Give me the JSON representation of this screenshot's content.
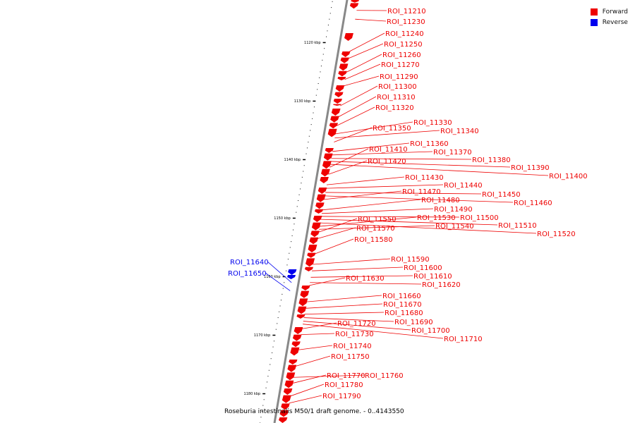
{
  "title": "Roseburia intestinalis M50/1 draft genome. - 0..4143550",
  "legend": [
    {
      "label": "Forward",
      "color": "#ee0000"
    },
    {
      "label": "Reverse",
      "color": "#0000ee"
    }
  ],
  "colors": {
    "forward": "#ee0000",
    "reverse": "#0000ee",
    "axis": "#888888"
  },
  "axis": {
    "start_kbp": 1112,
    "end_kbp": 1185,
    "major_every_kbp": 10
  },
  "tick_labels": [
    {
      "kbp": 1120,
      "label": "1120 kbp"
    },
    {
      "kbp": 1130,
      "label": "1130 kbp"
    },
    {
      "kbp": 1140,
      "label": "1140 kbp"
    },
    {
      "kbp": 1150,
      "label": "1150 kbp"
    },
    {
      "kbp": 1160,
      "label": "1160 kbp"
    },
    {
      "kbp": 1170,
      "label": "1170 kbp"
    },
    {
      "kbp": 1180,
      "label": "1180 kbp"
    }
  ],
  "features": [
    {
      "name": "ROI_11210",
      "strand": "forward",
      "kbp": 1114.5
    },
    {
      "name": "ROI_11230",
      "strand": "forward",
      "kbp": 1116.0
    },
    {
      "name": "ROI_11240",
      "strand": "forward",
      "kbp": 1121.5
    },
    {
      "name": "ROI_11250",
      "strand": "forward",
      "kbp": 1122.7
    },
    {
      "name": "ROI_11260",
      "strand": "forward",
      "kbp": 1125.1
    },
    {
      "name": "ROI_11270",
      "strand": "forward",
      "kbp": 1126.3
    },
    {
      "name": "ROI_11290",
      "strand": "forward",
      "kbp": 1127.4
    },
    {
      "name": "ROI_11300",
      "strand": "forward",
      "kbp": 1130.8
    },
    {
      "name": "ROI_11310",
      "strand": "forward",
      "kbp": 1132.7
    },
    {
      "name": "ROI_11320",
      "strand": "forward",
      "kbp": 1134.2
    },
    {
      "name": "ROI_11330",
      "strand": "forward",
      "kbp": 1135.6
    },
    {
      "name": "ROI_11340",
      "strand": "forward",
      "kbp": 1136.3
    },
    {
      "name": "ROI_11350",
      "strand": "forward",
      "kbp": 1137.0
    },
    {
      "name": "ROI_11360",
      "strand": "forward",
      "kbp": 1138.6
    },
    {
      "name": "ROI_11370",
      "strand": "forward",
      "kbp": 1139.2
    },
    {
      "name": "ROI_11380",
      "strand": "forward",
      "kbp": 1139.8
    },
    {
      "name": "ROI_11390",
      "strand": "forward",
      "kbp": 1140.3
    },
    {
      "name": "ROI_11400",
      "strand": "forward",
      "kbp": 1140.8
    },
    {
      "name": "ROI_11410",
      "strand": "forward",
      "kbp": 1141.3
    },
    {
      "name": "ROI_11420",
      "strand": "forward",
      "kbp": 1142.5
    },
    {
      "name": "ROI_11430",
      "strand": "forward",
      "kbp": 1144.3
    },
    {
      "name": "ROI_11440",
      "strand": "forward",
      "kbp": 1144.9
    },
    {
      "name": "ROI_11450",
      "strand": "forward",
      "kbp": 1145.6
    },
    {
      "name": "ROI_11460",
      "strand": "forward",
      "kbp": 1146.2
    },
    {
      "name": "ROI_11470",
      "strand": "forward",
      "kbp": 1146.8
    },
    {
      "name": "ROI_11480",
      "strand": "forward",
      "kbp": 1148.6
    },
    {
      "name": "ROI_11490",
      "strand": "forward",
      "kbp": 1149.2
    },
    {
      "name": "ROI_11500",
      "strand": "forward",
      "kbp": 1149.7
    },
    {
      "name": "ROI_11510",
      "strand": "forward",
      "kbp": 1150.2
    },
    {
      "name": "ROI_11520",
      "strand": "forward",
      "kbp": 1150.8
    },
    {
      "name": "ROI_11530",
      "strand": "forward",
      "kbp": 1151.4
    },
    {
      "name": "ROI_11540",
      "strand": "forward",
      "kbp": 1151.9
    },
    {
      "name": "ROI_11550",
      "strand": "forward",
      "kbp": 1152.4
    },
    {
      "name": "ROI_11570",
      "strand": "forward",
      "kbp": 1153.5
    },
    {
      "name": "ROI_11580",
      "strand": "forward",
      "kbp": 1156.1
    },
    {
      "name": "ROI_11590",
      "strand": "forward",
      "kbp": 1157.9
    },
    {
      "name": "ROI_11600",
      "strand": "forward",
      "kbp": 1159.0
    },
    {
      "name": "ROI_11610",
      "strand": "forward",
      "kbp": 1160.1
    },
    {
      "name": "ROI_11620",
      "strand": "forward",
      "kbp": 1161.0
    },
    {
      "name": "ROI_11630",
      "strand": "forward",
      "kbp": 1161.5
    },
    {
      "name": "ROI_11640",
      "strand": "reverse",
      "kbp": 1161.0
    },
    {
      "name": "ROI_11650",
      "strand": "reverse",
      "kbp": 1162.4
    },
    {
      "name": "ROI_11660",
      "strand": "forward",
      "kbp": 1164.3
    },
    {
      "name": "ROI_11670",
      "strand": "forward",
      "kbp": 1165.4
    },
    {
      "name": "ROI_11680",
      "strand": "forward",
      "kbp": 1166.4
    },
    {
      "name": "ROI_11690",
      "strand": "forward",
      "kbp": 1167.0
    },
    {
      "name": "ROI_11700",
      "strand": "forward",
      "kbp": 1167.6
    },
    {
      "name": "ROI_11710",
      "strand": "forward",
      "kbp": 1168.1
    },
    {
      "name": "ROI_11720",
      "strand": "forward",
      "kbp": 1168.9
    },
    {
      "name": "ROI_11730",
      "strand": "forward",
      "kbp": 1169.9
    },
    {
      "name": "ROI_11740",
      "strand": "forward",
      "kbp": 1172.5
    },
    {
      "name": "ROI_11750",
      "strand": "forward",
      "kbp": 1175.3
    },
    {
      "name": "ROI_11760",
      "strand": "forward",
      "kbp": 1177.2
    },
    {
      "name": "ROI_11770",
      "strand": "forward",
      "kbp": 1178.2
    },
    {
      "name": "ROI_11780",
      "strand": "forward",
      "kbp": 1180.4
    },
    {
      "name": "ROI_11790",
      "strand": "forward",
      "kbp": 1181.6
    }
  ]
}
